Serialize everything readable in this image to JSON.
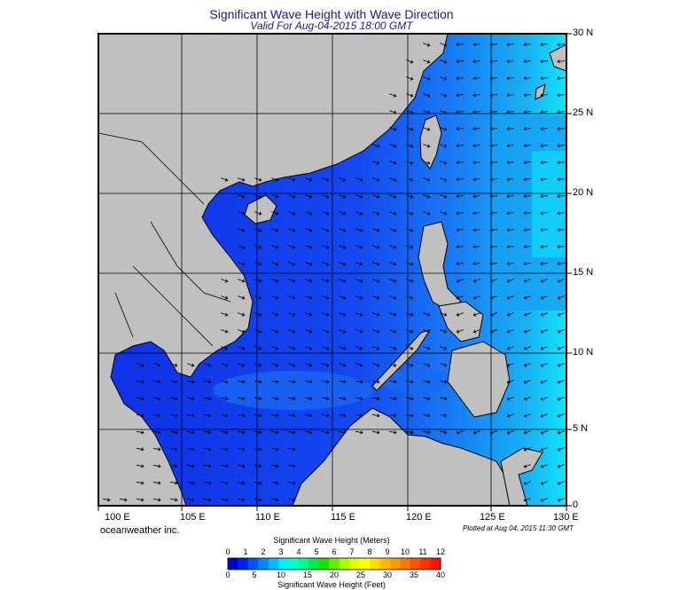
{
  "title": "Significant Wave Height with Wave Direction",
  "subtitle": "Valid For Aug-04-2015 18:00 GMT",
  "credit": "oceanweather inc.",
  "plotted": "Plotted at Aug 04, 2015 11:30 GMT",
  "lat_labels": [
    "30 N",
    "25 N",
    "20 N",
    "15 N",
    "10 N",
    "5 N",
    "0"
  ],
  "lon_labels": [
    "100 E",
    "105 E",
    "110 E",
    "115 E",
    "120 E",
    "125 E",
    "130 E"
  ],
  "colorbar": {
    "meters_title": "Significant Wave Height (Meters)",
    "feet_title": "Significant Wave Height (Feet)",
    "meters_ticks": [
      "0",
      "1",
      "2",
      "3",
      "4",
      "5",
      "6",
      "7",
      "8",
      "9",
      "10",
      "11",
      "12"
    ],
    "feet_ticks": [
      "0",
      "5",
      "10",
      "15",
      "20",
      "25",
      "30",
      "35",
      "40"
    ],
    "colors": [
      "#0000cc",
      "#0022ee",
      "#0055ff",
      "#0088ff",
      "#00bbff",
      "#00eeff",
      "#00ffcc",
      "#00ff88",
      "#00ee44",
      "#22dd00",
      "#66ee00",
      "#aaff00",
      "#ddff00",
      "#ffff00",
      "#ffdd00",
      "#ffbb00",
      "#ff9900",
      "#ff7700",
      "#ff5500",
      "#ff3300",
      "#ff1100"
    ]
  },
  "colors": {
    "land": "#c0c0c0",
    "sea_deep": "#0a1acc",
    "sea_mid": "#1a5cf0",
    "sea_light": "#00c8ff",
    "title": "#1a1a8c"
  }
}
